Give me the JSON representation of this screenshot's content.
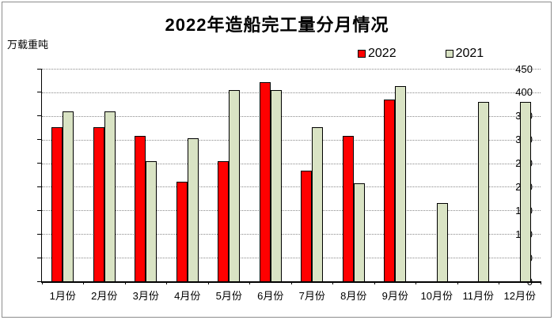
{
  "title": "2022年造船完工量分月情况",
  "unit_label": "万载重吨",
  "legend": {
    "items": [
      {
        "label": "2022",
        "color": "#ff0000"
      },
      {
        "label": "2021",
        "color": "#d9e3c4"
      }
    ]
  },
  "colors": {
    "bar_2022": "#ff0000",
    "bar_2021": "#d9e3c4",
    "bar_border": "#000000",
    "gridline": "#8a8a8a",
    "axis": "#000000",
    "outer_border": "#8c8c8c",
    "background": "#ffffff"
  },
  "chart_data": {
    "type": "bar",
    "title": "2022年造船完工量分月情况",
    "xlabel": "",
    "ylabel": "万载重吨",
    "ylim": [
      0,
      450
    ],
    "yticks": [
      0,
      50,
      100,
      150,
      200,
      250,
      300,
      350,
      400,
      450
    ],
    "grid": true,
    "legend_position": "top-right",
    "categories": [
      "1月份",
      "2月份",
      "3月份",
      "4月份",
      "5月份",
      "6月份",
      "7月份",
      "8月份",
      "9月份",
      "10月份",
      "11月份",
      "12月份"
    ],
    "series": [
      {
        "name": "2022",
        "color": "#ff0000",
        "values": [
          327,
          327,
          308,
          210,
          255,
          422,
          234,
          308,
          385,
          null,
          null,
          null
        ]
      },
      {
        "name": "2021",
        "color": "#d9e3c4",
        "values": [
          360,
          360,
          255,
          302,
          405,
          405,
          326,
          208,
          414,
          165,
          380,
          380
        ]
      }
    ]
  }
}
